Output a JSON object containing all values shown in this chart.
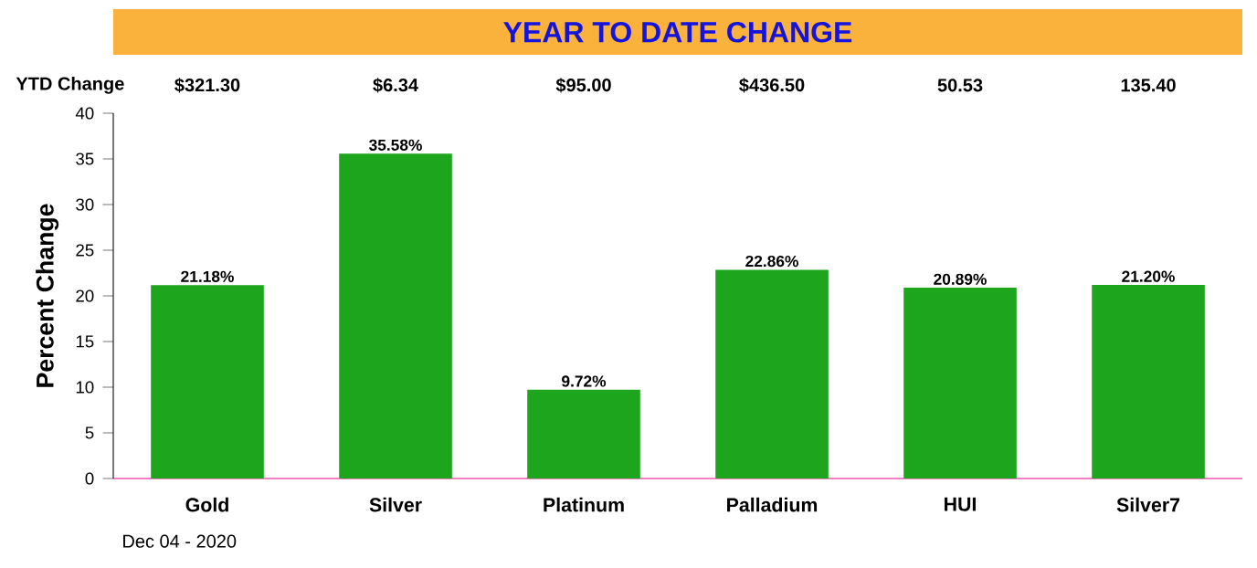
{
  "chart_data": {
    "type": "bar",
    "title": "YEAR TO DATE CHANGE",
    "ylabel": "Percent Change",
    "categories": [
      "Gold",
      "Silver",
      "Platinum",
      "Palladium",
      "HUI",
      "Silver7"
    ],
    "values": [
      21.18,
      35.58,
      9.72,
      22.86,
      20.89,
      21.2
    ],
    "value_labels": [
      "21.18%",
      "35.58%",
      "9.72%",
      "22.86%",
      "20.89%",
      "21.20%"
    ],
    "color": "#1ea51e",
    "ylim": [
      0,
      40
    ],
    "yticks": [
      0,
      5,
      10,
      15,
      20,
      25,
      30,
      35,
      40
    ],
    "annotations": [
      "YTD Change",
      "$321.30",
      "$6.34",
      "$95.00",
      "$436.50",
      "50.53",
      "135.40",
      "Dec 04 - 2020"
    ]
  }
}
